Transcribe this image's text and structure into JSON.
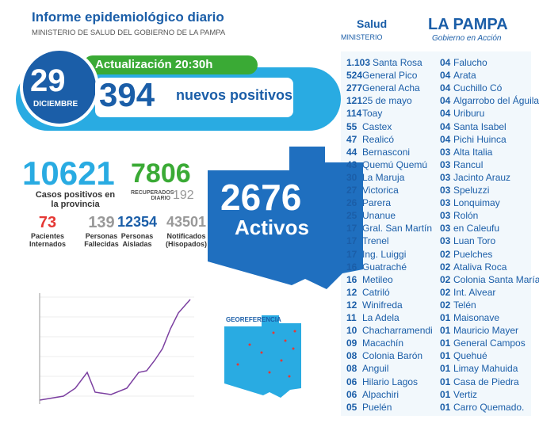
{
  "header": {
    "title": "Informe epidemiológico diario",
    "subtitle": "MINISTERIO DE SALUD DEL GOBIERNO DE LA PAMPA"
  },
  "logo": {
    "salud": "Salud",
    "ministerio": "MINISTERIO",
    "province": "LA PAMPA",
    "slogan": "Gobierno en Acción"
  },
  "banner": {
    "day": "29",
    "month": "DICIEMBRE",
    "update": "Actualización 20:30h",
    "new_count": "394",
    "new_label": "nuevos positivos"
  },
  "stats": {
    "cases": "10621",
    "cases_label": "Casos positivos en la provincia",
    "recovered": "7806",
    "recovered_label": "RECUPERADOS DIARIO",
    "recovered_daily": "192",
    "small": [
      {
        "value": "73",
        "label": "Pacientes Internados"
      },
      {
        "value": "139",
        "label": "Personas Fallecidas"
      },
      {
        "value": "12354",
        "label": "Personas Aisladas"
      },
      {
        "value": "43501",
        "label": "Notificados (Hisopados)"
      }
    ]
  },
  "map": {
    "active": "2676",
    "active_label": "Activos",
    "georef": "GEOREFERENCIA"
  },
  "localities": {
    "left": [
      [
        "1.103",
        "Santa Rosa"
      ],
      [
        "524",
        "General Pico"
      ],
      [
        "277",
        "General Acha"
      ],
      [
        "121",
        "25 de mayo"
      ],
      [
        "114",
        "Toay"
      ],
      [
        "55",
        "Castex"
      ],
      [
        "47",
        "Realicó"
      ],
      [
        "44",
        "Bernasconi"
      ],
      [
        "43",
        "Quemú Quemú"
      ],
      [
        "30",
        "La Maruja"
      ],
      [
        "27",
        "Victorica"
      ],
      [
        "26",
        "Parera"
      ],
      [
        "25",
        "Unanue"
      ],
      [
        "17",
        "Gral. San Martín"
      ],
      [
        "17",
        "Trenel"
      ],
      [
        "17",
        "Ing. Luiggi"
      ],
      [
        "16",
        "Guatraché"
      ],
      [
        "16",
        "Metileo"
      ],
      [
        "12",
        "Catriló"
      ],
      [
        "12",
        "Winifreda"
      ],
      [
        "11",
        "La Adela"
      ],
      [
        "10",
        "Chacharramendi"
      ],
      [
        "09",
        "Macachín"
      ],
      [
        "08",
        "Colonia Barón"
      ],
      [
        "08",
        "Anguil"
      ],
      [
        "06",
        "Hilario Lagos"
      ],
      [
        "06",
        "Alpachiri"
      ],
      [
        "05",
        "Puelén"
      ]
    ],
    "right": [
      [
        "04",
        "Falucho"
      ],
      [
        "04",
        "Arata"
      ],
      [
        "04",
        "Cuchillo Có"
      ],
      [
        "04",
        "Algarrobo del Águila"
      ],
      [
        "04",
        "Uriburu"
      ],
      [
        "04",
        "Santa Isabel"
      ],
      [
        "04",
        "Pichi Huinca"
      ],
      [
        "03",
        "Alta Italia"
      ],
      [
        "03",
        "Rancul"
      ],
      [
        "03",
        "Jacinto Arauz"
      ],
      [
        "03",
        "Speluzzi"
      ],
      [
        "03",
        "Lonquimay"
      ],
      [
        "03",
        "Rolón"
      ],
      [
        "03",
        "en Caleufu"
      ],
      [
        "03",
        "Luan Toro"
      ],
      [
        "02",
        "Puelches"
      ],
      [
        "02",
        "Ataliva Roca"
      ],
      [
        "02",
        "Colonia Santa María"
      ],
      [
        "02",
        "Int. Alvear"
      ],
      [
        "02",
        "Telén"
      ],
      [
        "01",
        "Maisonave"
      ],
      [
        "01",
        "Mauricio Mayer"
      ],
      [
        "01",
        "General Campos"
      ],
      [
        "01",
        "Quehué"
      ],
      [
        "01",
        "Limay Mahuida"
      ],
      [
        "01",
        "Casa de Piedra"
      ],
      [
        "01",
        "Vertiz"
      ],
      [
        "01",
        "Carro Quemado."
      ]
    ]
  }
}
